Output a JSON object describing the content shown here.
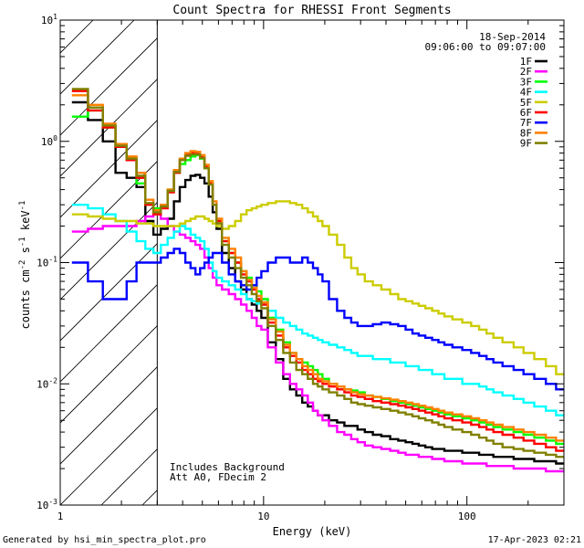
{
  "chart_data": {
    "type": "line",
    "title": "Count Spectra for RHESSI Front Segments",
    "date": "18-Sep-2014",
    "time_range": "09:06:00 to 09:07:00",
    "xlabel": "Energy (keV)",
    "ylabel_parts": {
      "a": "counts cm",
      "b": "-2",
      "c": " s",
      "d": "-1",
      "e": " keV",
      "f": "-1"
    },
    "x_scale": "log",
    "y_scale": "log",
    "xlim": [
      1,
      300
    ],
    "ylim": [
      0.001,
      10
    ],
    "x_tick_labels": [
      {
        "v": 1,
        "t": "1"
      },
      {
        "v": 10,
        "t": "10"
      },
      {
        "v": 100,
        "t": "100"
      }
    ],
    "y_tick_labels": [
      {
        "v": 0.001,
        "base": "10",
        "exp": "-3"
      },
      {
        "v": 0.01,
        "base": "10",
        "exp": "-2"
      },
      {
        "v": 0.1,
        "base": "10",
        "exp": "-1"
      },
      {
        "v": 1,
        "base": "10",
        "exp": "0"
      },
      {
        "v": 10,
        "base": "10",
        "exp": "1"
      }
    ],
    "annotation_lines": [
      "Includes Background",
      "Att A0, FDecim 2"
    ],
    "excluded_region_upper_keV": 3,
    "footer_left": "Generated by hsi_min_spectra_plot.pro",
    "footer_right": "17-Apr-2023 02:21",
    "energy_keV": [
      1.25,
      1.5,
      1.75,
      2.0,
      2.25,
      2.5,
      2.75,
      3.0,
      3.25,
      3.5,
      3.75,
      4.0,
      4.25,
      4.5,
      4.75,
      5.0,
      5.25,
      5.5,
      5.75,
      6.0,
      6.5,
      7.0,
      7.5,
      8.0,
      8.5,
      9.0,
      9.5,
      10,
      11,
      12,
      13,
      14,
      15,
      16,
      17,
      18,
      19,
      20,
      22,
      24,
      26,
      28,
      30,
      33,
      36,
      40,
      44,
      48,
      52,
      56,
      60,
      65,
      70,
      75,
      80,
      90,
      100,
      110,
      120,
      130,
      140,
      160,
      180,
      200,
      230,
      260,
      290
    ],
    "series": [
      {
        "name": "1F",
        "color": "#000000",
        "values": [
          2.1,
          1.5,
          1.0,
          0.55,
          0.5,
          0.42,
          0.22,
          0.17,
          0.19,
          0.23,
          0.32,
          0.42,
          0.48,
          0.52,
          0.53,
          0.5,
          0.45,
          0.35,
          0.26,
          0.19,
          0.12,
          0.09,
          0.07,
          0.06,
          0.05,
          0.045,
          0.04,
          0.035,
          0.022,
          0.016,
          0.011,
          0.009,
          0.008,
          0.007,
          0.0065,
          0.006,
          0.0055,
          0.0055,
          0.005,
          0.0048,
          0.0045,
          0.0045,
          0.0042,
          0.004,
          0.0038,
          0.0037,
          0.0035,
          0.0034,
          0.0033,
          0.0032,
          0.0031,
          0.003,
          0.0029,
          0.0029,
          0.0028,
          0.0028,
          0.0027,
          0.0027,
          0.0026,
          0.0026,
          0.0025,
          0.0025,
          0.0024,
          0.0024,
          0.0023,
          0.0023,
          0.0022
        ]
      },
      {
        "name": "2F",
        "color": "#ff00ff",
        "values": [
          0.18,
          0.19,
          0.2,
          0.2,
          0.2,
          0.22,
          0.24,
          0.25,
          0.23,
          0.2,
          0.18,
          0.17,
          0.16,
          0.15,
          0.14,
          0.13,
          0.11,
          0.09,
          0.075,
          0.065,
          0.06,
          0.055,
          0.05,
          0.045,
          0.04,
          0.035,
          0.03,
          0.028,
          0.02,
          0.015,
          0.012,
          0.01,
          0.009,
          0.008,
          0.007,
          0.006,
          0.0055,
          0.005,
          0.0045,
          0.004,
          0.0038,
          0.0035,
          0.0033,
          0.0031,
          0.003,
          0.0029,
          0.0028,
          0.0027,
          0.0026,
          0.0026,
          0.0025,
          0.0025,
          0.0024,
          0.0024,
          0.0023,
          0.0023,
          0.0022,
          0.0022,
          0.0022,
          0.0021,
          0.0021,
          0.0021,
          0.002,
          0.002,
          0.002,
          0.0019,
          0.0019
        ]
      },
      {
        "name": "3F",
        "color": "#00ff00",
        "values": [
          1.6,
          1.8,
          1.3,
          0.9,
          0.7,
          0.45,
          0.3,
          0.28,
          0.3,
          0.4,
          0.55,
          0.65,
          0.7,
          0.75,
          0.77,
          0.72,
          0.6,
          0.45,
          0.3,
          0.22,
          0.15,
          0.12,
          0.1,
          0.085,
          0.075,
          0.065,
          0.058,
          0.05,
          0.035,
          0.028,
          0.022,
          0.018,
          0.016,
          0.015,
          0.014,
          0.013,
          0.012,
          0.011,
          0.01,
          0.0095,
          0.009,
          0.0088,
          0.0085,
          0.008,
          0.0078,
          0.0075,
          0.0072,
          0.007,
          0.0068,
          0.0066,
          0.0064,
          0.0062,
          0.006,
          0.0058,
          0.0056,
          0.0054,
          0.0052,
          0.005,
          0.0048,
          0.0046,
          0.0044,
          0.0042,
          0.004,
          0.0038,
          0.0036,
          0.0034,
          0.0032
        ]
      },
      {
        "name": "4F",
        "color": "#00ffff",
        "values": [
          0.3,
          0.28,
          0.25,
          0.22,
          0.18,
          0.15,
          0.13,
          0.12,
          0.14,
          0.16,
          0.18,
          0.2,
          0.19,
          0.17,
          0.16,
          0.15,
          0.13,
          0.1,
          0.085,
          0.075,
          0.07,
          0.065,
          0.06,
          0.055,
          0.05,
          0.048,
          0.046,
          0.045,
          0.04,
          0.035,
          0.032,
          0.03,
          0.028,
          0.026,
          0.025,
          0.024,
          0.023,
          0.022,
          0.021,
          0.02,
          0.019,
          0.018,
          0.017,
          0.017,
          0.016,
          0.016,
          0.015,
          0.015,
          0.014,
          0.014,
          0.013,
          0.013,
          0.012,
          0.012,
          0.011,
          0.011,
          0.01,
          0.01,
          0.0095,
          0.009,
          0.0085,
          0.008,
          0.0075,
          0.007,
          0.0065,
          0.006,
          0.0055
        ]
      },
      {
        "name": "5F",
        "color": "#cccc00",
        "values": [
          0.25,
          0.24,
          0.23,
          0.22,
          0.22,
          0.21,
          0.21,
          0.2,
          0.2,
          0.2,
          0.2,
          0.21,
          0.22,
          0.23,
          0.24,
          0.24,
          0.23,
          0.22,
          0.21,
          0.2,
          0.19,
          0.2,
          0.22,
          0.25,
          0.27,
          0.28,
          0.29,
          0.3,
          0.31,
          0.32,
          0.32,
          0.31,
          0.3,
          0.28,
          0.26,
          0.24,
          0.22,
          0.2,
          0.17,
          0.14,
          0.11,
          0.09,
          0.08,
          0.07,
          0.065,
          0.06,
          0.055,
          0.05,
          0.048,
          0.046,
          0.044,
          0.042,
          0.04,
          0.038,
          0.036,
          0.034,
          0.032,
          0.03,
          0.028,
          0.026,
          0.024,
          0.022,
          0.02,
          0.018,
          0.016,
          0.014,
          0.012
        ]
      },
      {
        "name": "6F",
        "color": "#ff0000",
        "values": [
          2.6,
          1.8,
          1.3,
          0.9,
          0.7,
          0.5,
          0.3,
          0.25,
          0.28,
          0.38,
          0.55,
          0.7,
          0.78,
          0.8,
          0.8,
          0.75,
          0.62,
          0.45,
          0.3,
          0.22,
          0.15,
          0.12,
          0.1,
          0.08,
          0.07,
          0.06,
          0.05,
          0.045,
          0.032,
          0.025,
          0.02,
          0.017,
          0.015,
          0.013,
          0.012,
          0.011,
          0.0105,
          0.01,
          0.0095,
          0.009,
          0.0085,
          0.008,
          0.0078,
          0.0075,
          0.0072,
          0.007,
          0.0068,
          0.0066,
          0.0064,
          0.0062,
          0.006,
          0.0058,
          0.0056,
          0.0054,
          0.0052,
          0.005,
          0.0048,
          0.0046,
          0.0044,
          0.0042,
          0.004,
          0.0038,
          0.0036,
          0.0034,
          0.0032,
          0.003,
          0.0028
        ]
      },
      {
        "name": "7F",
        "color": "#0000ff",
        "values": [
          0.1,
          0.07,
          0.05,
          0.05,
          0.07,
          0.1,
          0.1,
          0.1,
          0.11,
          0.12,
          0.13,
          0.12,
          0.1,
          0.09,
          0.08,
          0.09,
          0.1,
          0.11,
          0.12,
          0.12,
          0.1,
          0.08,
          0.07,
          0.065,
          0.06,
          0.065,
          0.075,
          0.085,
          0.1,
          0.11,
          0.11,
          0.1,
          0.1,
          0.11,
          0.1,
          0.09,
          0.08,
          0.07,
          0.05,
          0.04,
          0.035,
          0.032,
          0.03,
          0.03,
          0.031,
          0.032,
          0.031,
          0.03,
          0.028,
          0.026,
          0.025,
          0.024,
          0.023,
          0.022,
          0.021,
          0.02,
          0.019,
          0.018,
          0.017,
          0.016,
          0.015,
          0.014,
          0.013,
          0.012,
          0.011,
          0.01,
          0.009
        ]
      },
      {
        "name": "8F",
        "color": "#ff8000",
        "values": [
          2.4,
          2.0,
          1.4,
          0.95,
          0.75,
          0.55,
          0.33,
          0.27,
          0.3,
          0.4,
          0.58,
          0.72,
          0.8,
          0.83,
          0.82,
          0.77,
          0.64,
          0.47,
          0.32,
          0.23,
          0.16,
          0.13,
          0.11,
          0.085,
          0.072,
          0.062,
          0.053,
          0.047,
          0.034,
          0.027,
          0.021,
          0.018,
          0.016,
          0.014,
          0.013,
          0.012,
          0.011,
          0.0105,
          0.01,
          0.0095,
          0.009,
          0.0085,
          0.0082,
          0.008,
          0.0078,
          0.0076,
          0.0074,
          0.0072,
          0.007,
          0.0068,
          0.0066,
          0.0064,
          0.0062,
          0.006,
          0.0058,
          0.0056,
          0.0054,
          0.0052,
          0.005,
          0.0048,
          0.0046,
          0.0044,
          0.0042,
          0.004,
          0.0038,
          0.0036,
          0.0034
        ]
      },
      {
        "name": "9F",
        "color": "#808000",
        "values": [
          2.7,
          1.9,
          1.35,
          0.92,
          0.72,
          0.52,
          0.31,
          0.26,
          0.29,
          0.39,
          0.56,
          0.7,
          0.76,
          0.78,
          0.78,
          0.73,
          0.6,
          0.44,
          0.3,
          0.21,
          0.14,
          0.11,
          0.09,
          0.075,
          0.065,
          0.055,
          0.048,
          0.042,
          0.03,
          0.023,
          0.018,
          0.015,
          0.013,
          0.012,
          0.011,
          0.01,
          0.0095,
          0.009,
          0.0085,
          0.008,
          0.0075,
          0.007,
          0.0068,
          0.0066,
          0.0064,
          0.0062,
          0.006,
          0.0058,
          0.0056,
          0.0054,
          0.0052,
          0.005,
          0.0048,
          0.0046,
          0.0044,
          0.0042,
          0.004,
          0.0038,
          0.0036,
          0.0034,
          0.0032,
          0.003,
          0.0029,
          0.0028,
          0.0027,
          0.0026,
          0.0025
        ]
      }
    ]
  }
}
